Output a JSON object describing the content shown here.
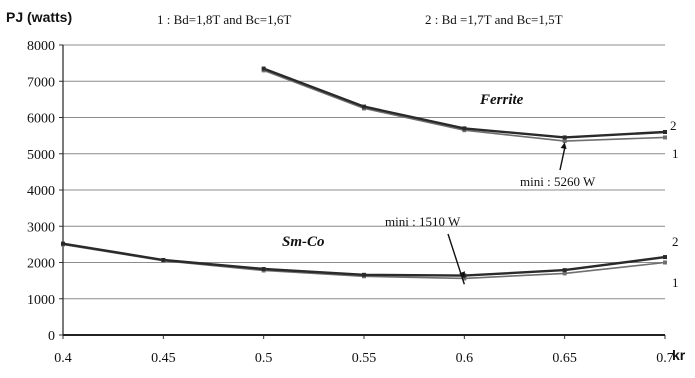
{
  "chart_data": {
    "type": "line",
    "ylabel": "PJ (watts)",
    "xlabel": "kr",
    "xlim": [
      0.4,
      0.7
    ],
    "ylim": [
      0,
      8000
    ],
    "x_ticks": [
      "0.4",
      "0.45",
      "0.5",
      "0.55",
      "0.6",
      "0.65",
      "0.7"
    ],
    "y_ticks": [
      "0",
      "1000",
      "2000",
      "3000",
      "4000",
      "5000",
      "6000",
      "7000",
      "8000"
    ],
    "grid": "horizontal",
    "legend": [
      "1 : Bd=1,8T and Bc=1,6T",
      "2 : Bd =1,7T and Bc=1,5T"
    ],
    "groups": [
      {
        "label": "Ferrite",
        "series": [
          {
            "name": "1",
            "x": [
              0.5,
              0.55,
              0.6,
              0.65,
              0.7
            ],
            "values": [
              7300,
              6250,
              5650,
              5350,
              5450
            ]
          },
          {
            "name": "2",
            "x": [
              0.5,
              0.55,
              0.6,
              0.65,
              0.7
            ],
            "values": [
              7350,
              6300,
              5700,
              5450,
              5600
            ]
          }
        ]
      },
      {
        "label": "Sm-Co",
        "series": [
          {
            "name": "1",
            "x": [
              0.4,
              0.45,
              0.5,
              0.55,
              0.6,
              0.65,
              0.7
            ],
            "values": [
              2500,
              2050,
              1780,
              1620,
              1560,
              1700,
              2000
            ]
          },
          {
            "name": "2",
            "x": [
              0.4,
              0.45,
              0.5,
              0.55,
              0.6,
              0.65,
              0.7
            ],
            "values": [
              2520,
              2070,
              1820,
              1660,
              1640,
              1790,
              2150
            ]
          }
        ]
      }
    ],
    "annotations": [
      {
        "text": "mini : 5260 W",
        "x": 0.65,
        "y": 5260
      },
      {
        "text": "mini : 1510 W",
        "x": 0.6,
        "y": 1510
      }
    ]
  }
}
